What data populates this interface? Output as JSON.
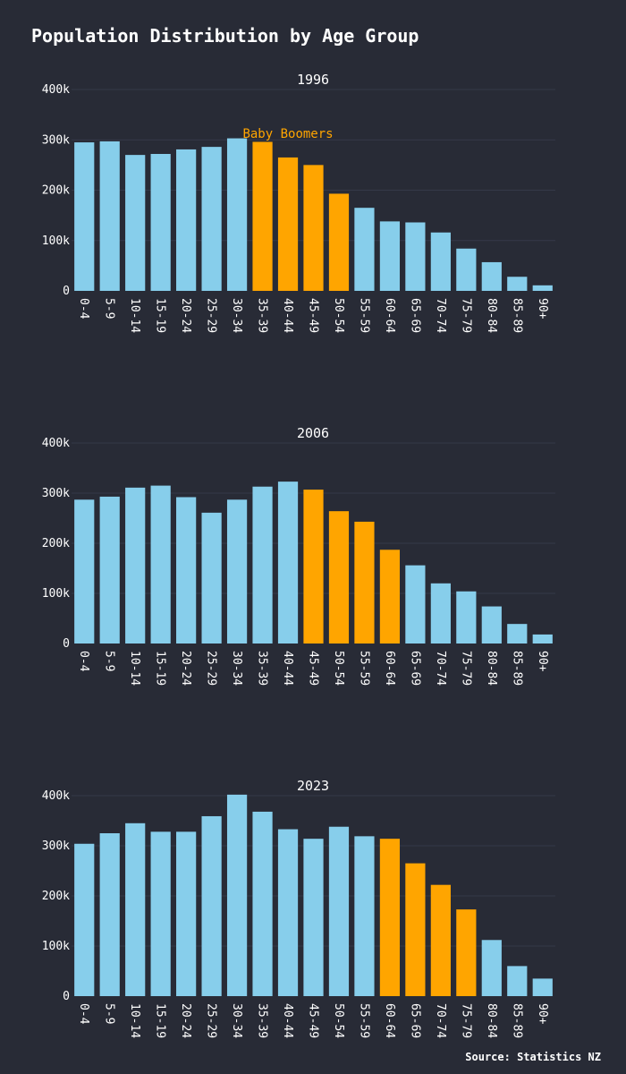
{
  "title": "Population Distribution by Age Group",
  "source": "Source: Statistics NZ",
  "colors": {
    "background": "#282b36",
    "bar": "#87ceeb",
    "highlight": "#ffa500",
    "grid": "#353948",
    "text": "#ffffff"
  },
  "chart_data": [
    {
      "type": "bar",
      "title": "1996",
      "categories": [
        "0-4",
        "5-9",
        "10-14",
        "15-19",
        "20-24",
        "25-29",
        "30-34",
        "35-39",
        "40-44",
        "45-49",
        "50-54",
        "55-59",
        "60-64",
        "65-69",
        "70-74",
        "75-79",
        "80-84",
        "85-89",
        "90+"
      ],
      "values": [
        295000,
        297000,
        270000,
        272000,
        281000,
        286000,
        303000,
        296000,
        265000,
        250000,
        193000,
        165000,
        138000,
        136000,
        116000,
        84000,
        57000,
        28000,
        11000
      ],
      "highlight": [
        "35-39",
        "40-44",
        "45-49",
        "50-54"
      ],
      "ylim": [
        0,
        400000
      ],
      "yticks": [
        0,
        100000,
        200000,
        300000,
        400000
      ],
      "ytick_labels": [
        "0",
        "100k",
        "200k",
        "300k",
        "400k"
      ],
      "annotation": {
        "text": "Baby Boomers",
        "x": "40-44",
        "y": 315000,
        "color": "#ffa500"
      }
    },
    {
      "type": "bar",
      "title": "2006",
      "categories": [
        "0-4",
        "5-9",
        "10-14",
        "15-19",
        "20-24",
        "25-29",
        "30-34",
        "35-39",
        "40-44",
        "45-49",
        "50-54",
        "55-59",
        "60-64",
        "65-69",
        "70-74",
        "75-79",
        "80-84",
        "85-89",
        "90+"
      ],
      "values": [
        287000,
        293000,
        311000,
        315000,
        292000,
        261000,
        287000,
        313000,
        323000,
        307000,
        264000,
        243000,
        187000,
        156000,
        120000,
        104000,
        74000,
        39000,
        18000
      ],
      "highlight": [
        "45-49",
        "50-54",
        "55-59",
        "60-64"
      ],
      "ylim": [
        0,
        400000
      ],
      "yticks": [
        0,
        100000,
        200000,
        300000,
        400000
      ],
      "ytick_labels": [
        "0",
        "100k",
        "200k",
        "300k",
        "400k"
      ]
    },
    {
      "type": "bar",
      "title": "2023",
      "categories": [
        "0-4",
        "5-9",
        "10-14",
        "15-19",
        "20-24",
        "25-29",
        "30-34",
        "35-39",
        "40-44",
        "45-49",
        "50-54",
        "55-59",
        "60-64",
        "65-69",
        "70-74",
        "75-79",
        "80-84",
        "85-89",
        "90+"
      ],
      "values": [
        304000,
        325000,
        345000,
        328000,
        328000,
        359000,
        402000,
        368000,
        333000,
        314000,
        338000,
        319000,
        314000,
        265000,
        222000,
        173000,
        112000,
        60000,
        35000
      ],
      "highlight": [
        "60-64",
        "65-69",
        "70-74",
        "75-79"
      ],
      "ylim": [
        0,
        400000
      ],
      "yticks": [
        0,
        100000,
        200000,
        300000,
        400000
      ],
      "ytick_labels": [
        "0",
        "100k",
        "200k",
        "300k",
        "400k"
      ]
    }
  ]
}
